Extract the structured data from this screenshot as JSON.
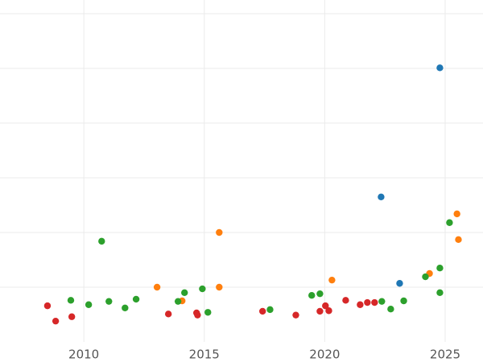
{
  "chart_data": {
    "type": "scatter",
    "xlim": [
      2006.52,
      2026.57
    ],
    "xticks": [
      2010,
      2015,
      2020,
      2025
    ],
    "ylim": [
      -1,
      5.25
    ],
    "yticks": [
      0,
      1,
      2,
      3,
      4,
      5
    ],
    "grid": true,
    "series": [
      {
        "color": "#1f77b4",
        "x": [
          2024.78,
          2022.34,
          2023.11
        ],
        "values": [
          4.01,
          1.65,
          0.07
        ]
      },
      {
        "color": "#ff7f0e",
        "x": [
          2013.04,
          2014.08,
          2015.62,
          2015.62,
          2020.3,
          2024.35,
          2025.49,
          2025.55
        ],
        "values": [
          0.0,
          -0.25,
          1.0,
          0.0,
          0.13,
          0.25,
          1.34,
          0.87
        ]
      },
      {
        "color": "#2ca02c",
        "x": [
          2009.46,
          2010.2,
          2010.74,
          2011.04,
          2011.71,
          2012.17,
          2013.91,
          2014.18,
          2014.92,
          2015.15,
          2017.73,
          2019.46,
          2019.8,
          2022.37,
          2022.74,
          2023.28,
          2024.18,
          2024.78,
          2024.78,
          2025.18
        ],
        "values": [
          -0.24,
          -0.32,
          0.84,
          -0.26,
          -0.38,
          -0.22,
          -0.26,
          -0.1,
          -0.03,
          -0.46,
          -0.41,
          -0.15,
          -0.12,
          -0.26,
          -0.4,
          -0.25,
          0.19,
          0.35,
          -0.1,
          1.18
        ]
      },
      {
        "color": "#d62728",
        "x": [
          2008.49,
          2008.83,
          2009.5,
          2013.51,
          2014.68,
          2014.72,
          2017.42,
          2018.8,
          2019.8,
          2020.03,
          2020.17,
          2020.87,
          2021.47,
          2021.77,
          2022.07
        ],
        "values": [
          -0.34,
          -0.62,
          -0.54,
          -0.49,
          -0.47,
          -0.51,
          -0.44,
          -0.51,
          -0.44,
          -0.34,
          -0.43,
          -0.24,
          -0.32,
          -0.28,
          -0.28
        ]
      }
    ]
  }
}
